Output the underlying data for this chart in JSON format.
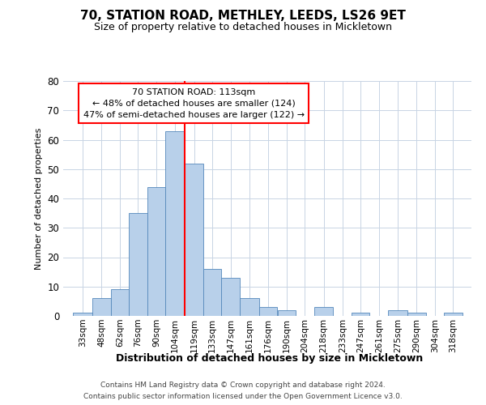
{
  "title": "70, STATION ROAD, METHLEY, LEEDS, LS26 9ET",
  "subtitle": "Size of property relative to detached houses in Mickletown",
  "xlabel": "Distribution of detached houses by size in Mickletown",
  "ylabel": "Number of detached properties",
  "footer1": "Contains HM Land Registry data © Crown copyright and database right 2024.",
  "footer2": "Contains public sector information licensed under the Open Government Licence v3.0.",
  "annotation_title": "70 STATION ROAD: 113sqm",
  "annotation_line1": "← 48% of detached houses are smaller (124)",
  "annotation_line2": "47% of semi-detached houses are larger (122) →",
  "bar_color": "#b8d0ea",
  "bar_edge_color": "#5588bb",
  "red_line_x": 119,
  "categories": [
    "33sqm",
    "48sqm",
    "62sqm",
    "76sqm",
    "90sqm",
    "104sqm",
    "119sqm",
    "133sqm",
    "147sqm",
    "161sqm",
    "176sqm",
    "190sqm",
    "204sqm",
    "218sqm",
    "233sqm",
    "247sqm",
    "261sqm",
    "275sqm",
    "290sqm",
    "304sqm",
    "318sqm"
  ],
  "bin_edges": [
    33,
    48,
    62,
    76,
    90,
    104,
    119,
    133,
    147,
    161,
    176,
    190,
    204,
    218,
    233,
    247,
    261,
    275,
    290,
    304,
    318,
    332
  ],
  "values": [
    1,
    6,
    9,
    35,
    44,
    63,
    52,
    16,
    13,
    6,
    3,
    2,
    0,
    3,
    0,
    1,
    0,
    2,
    1,
    0,
    1
  ],
  "ylim": [
    0,
    80
  ],
  "yticks": [
    0,
    10,
    20,
    30,
    40,
    50,
    60,
    70,
    80
  ],
  "background_color": "#ffffff",
  "grid_color": "#c8d4e4"
}
